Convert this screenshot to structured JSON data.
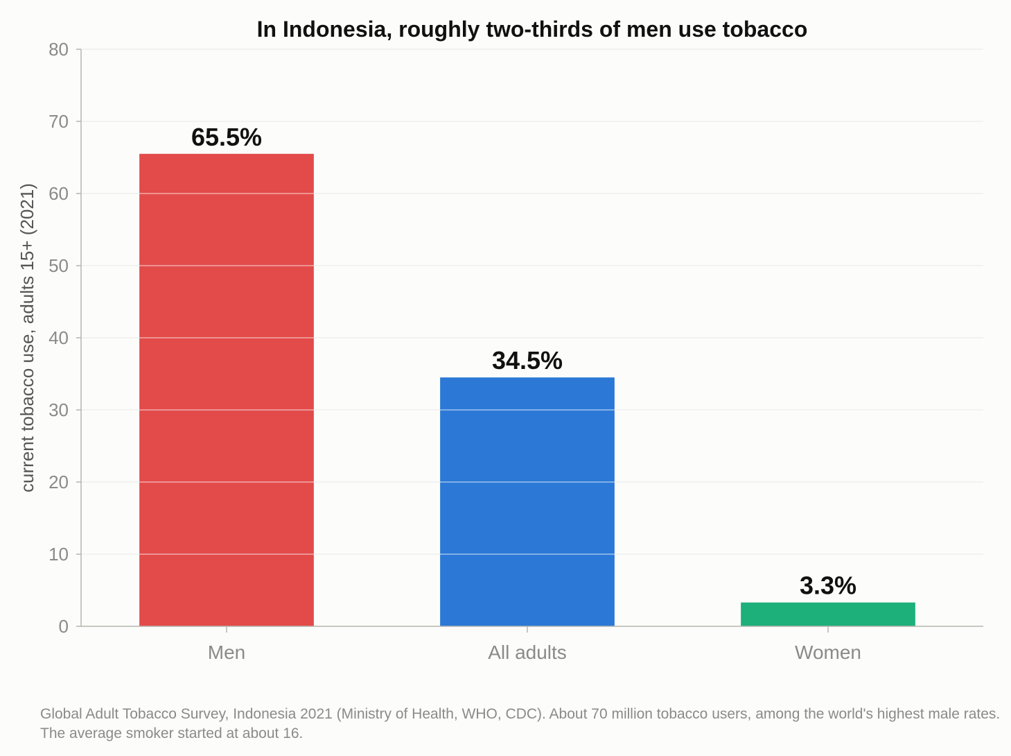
{
  "chart_data": {
    "type": "bar",
    "title": "In Indonesia, roughly two-thirds of men use tobacco",
    "xlabel": "",
    "ylabel": "current tobacco use, adults 15+ (2021)",
    "categories": [
      "Men",
      "All adults",
      "Women"
    ],
    "values": [
      65.5,
      34.5,
      3.3
    ],
    "data_labels": [
      "65.5%",
      "34.5%",
      "3.3%"
    ],
    "colors": [
      "#e34a4a",
      "#2b78d6",
      "#1db07a"
    ],
    "ylim": [
      0,
      80
    ],
    "yticks": [
      0,
      10,
      20,
      30,
      40,
      50,
      60,
      70,
      80
    ],
    "grid": true,
    "legend": "none"
  },
  "footnote": "Global Adult Tobacco Survey, Indonesia 2021 (Ministry of Health, WHO, CDC). About 70 million tobacco users, among the world's highest male rates. The average smoker started at about 16."
}
